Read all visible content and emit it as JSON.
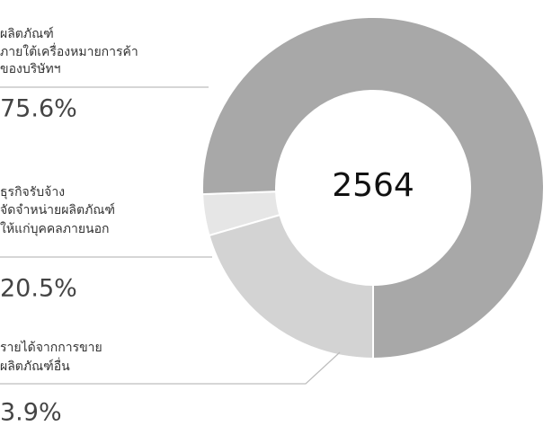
{
  "chart_data": {
    "type": "pie",
    "center_label": "2564",
    "categories": [
      [
        "ผลิตภัณฑ์",
        "ภายใต้เครื่องหมายการค้า",
        "ของบริษัทฯ"
      ],
      [
        "ธุรกิจรับจ้าง",
        "จัดจำหน่ายผลิตภัณฑ์",
        "ให้แก่บุคคลภายนอก"
      ],
      [
        "รายได้จากการขาย",
        "ผลิตภัณฑ์อื่น"
      ]
    ],
    "values": [
      75.6,
      20.5,
      3.9
    ],
    "value_labels": [
      "75.6%",
      "20.5%",
      "3.9%"
    ],
    "colors": [
      "#a8a8a8",
      "#d3d3d3",
      "#e6e6e6"
    ]
  }
}
